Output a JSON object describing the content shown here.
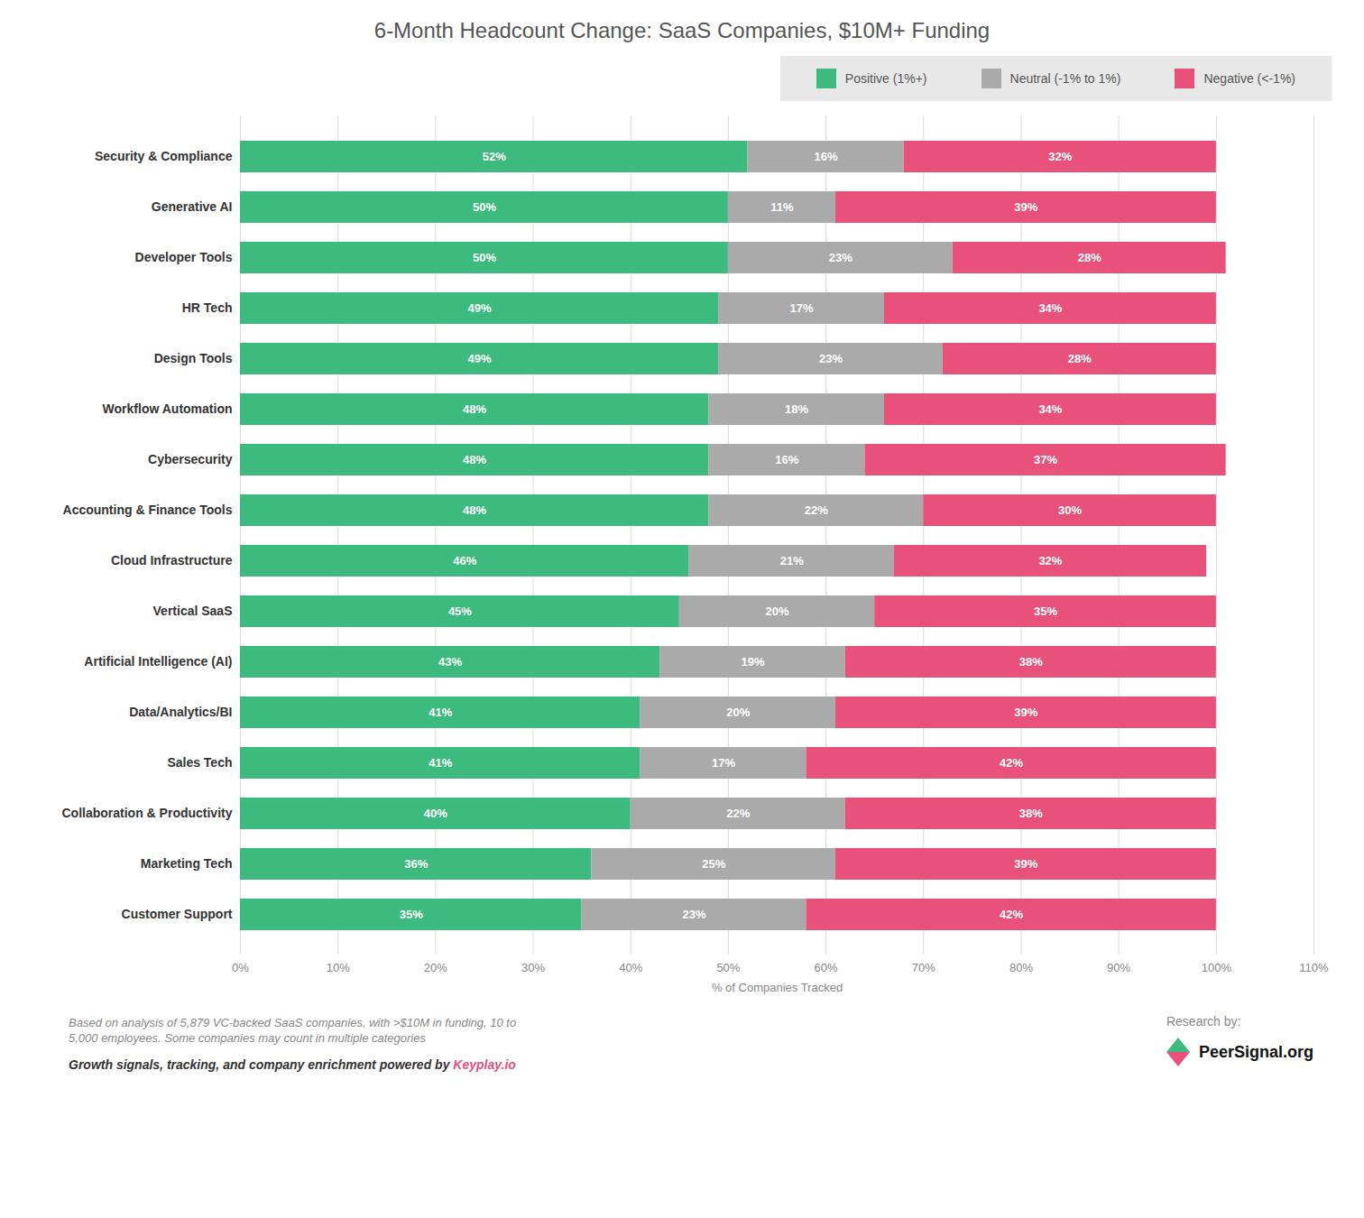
{
  "chart_data": {
    "type": "bar",
    "orientation": "horizontal",
    "stacked": true,
    "title": "6-Month Headcount Change: SaaS Companies, $10M+ Funding",
    "categories": [
      "Security & Compliance",
      "Generative AI",
      "Developer Tools",
      "HR Tech",
      "Design Tools",
      "Workflow Automation",
      "Cybersecurity",
      "Accounting & Finance Tools",
      "Cloud Infrastructure",
      "Vertical SaaS",
      "Artificial Intelligence (AI)",
      "Data/Analytics/BI",
      "Sales Tech",
      "Collaboration & Productivity",
      "Marketing Tech",
      "Customer Support"
    ],
    "series": [
      {
        "name": "Positive (1%+)",
        "color": "#3dba7e",
        "values": [
          52,
          50,
          50,
          49,
          49,
          48,
          48,
          48,
          46,
          45,
          43,
          41,
          41,
          40,
          36,
          35
        ],
        "value_labels": [
          "52%",
          "50%",
          "50%",
          "49%",
          "49%",
          "48%",
          "48%",
          "48%",
          "46%",
          "45%",
          "43%",
          "41%",
          "41%",
          "40%",
          "36%",
          "35%"
        ]
      },
      {
        "name": "Neutral (-1% to 1%)",
        "color": "#aaaaaa",
        "values": [
          16,
          11,
          23,
          17,
          23,
          18,
          16,
          22,
          21,
          20,
          19,
          20,
          17,
          22,
          25,
          23
        ],
        "value_labels": [
          "16%",
          "11%",
          "23%",
          "17%",
          "23%",
          "18%",
          "16%",
          "22%",
          "21%",
          "20%",
          "19%",
          "20%",
          "17%",
          "22%",
          "25%",
          "23%"
        ]
      },
      {
        "name": "Negative (<-1%)",
        "color": "#e8527a",
        "values": [
          32,
          39,
          28,
          34,
          28,
          34,
          37,
          30,
          32,
          35,
          38,
          39,
          42,
          38,
          39,
          42
        ],
        "value_labels": [
          "32%",
          "39%",
          "28%",
          "34%",
          "28%",
          "34%",
          "37%",
          "30%",
          "32%",
          "35%",
          "38%",
          "39%",
          "42%",
          "38%",
          "39%",
          "42%"
        ]
      }
    ],
    "xlabel": "% of Companies Tracked",
    "xlim": [
      0,
      110
    ],
    "xticks": [
      {
        "value": 0,
        "label": "0%"
      },
      {
        "value": 10,
        "label": "10%"
      },
      {
        "value": 20,
        "label": "20%"
      },
      {
        "value": 30,
        "label": "30%"
      },
      {
        "value": 40,
        "label": "40%"
      },
      {
        "value": 50,
        "label": "50%"
      },
      {
        "value": 60,
        "label": "60%"
      },
      {
        "value": 70,
        "label": "70%"
      },
      {
        "value": 80,
        "label": "80%"
      },
      {
        "value": 90,
        "label": "90%"
      },
      {
        "value": 100,
        "label": "100%"
      },
      {
        "value": 110,
        "label": "110%"
      }
    ],
    "grid": true,
    "legend": "top",
    "data_labels": true,
    "annotations": [
      "Based on analysis of 5,879 VC-backed SaaS companies, with >$10M in funding, 10 to",
      "5,000 employees. Some companies may count in multiple categories",
      "Growth signals, tracking, and company enrichment powered by",
      "Keyplay.io",
      "Research by:",
      "PeerSignal.org"
    ]
  }
}
